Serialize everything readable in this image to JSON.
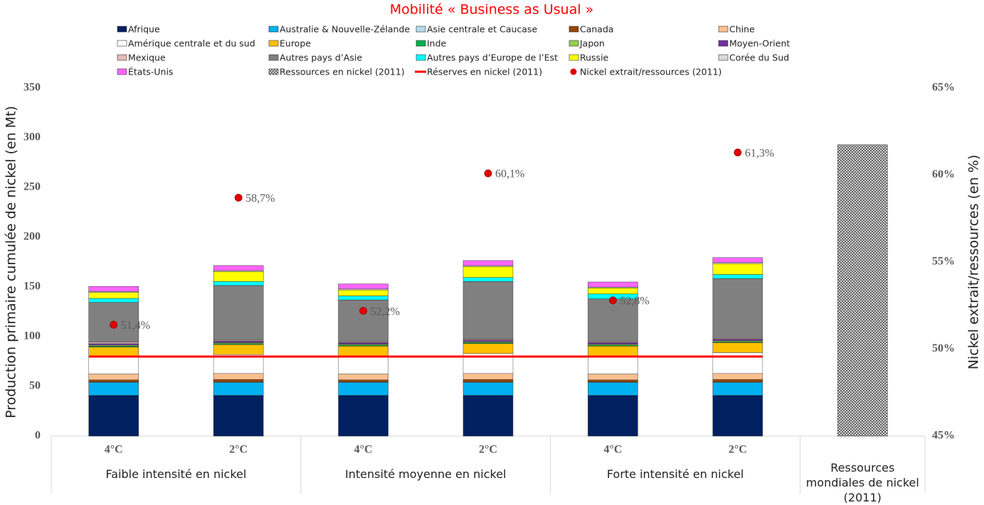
{
  "chart_data": {
    "type": "bar",
    "stacked": true,
    "title": "Mobilité « Business as Usual »",
    "ylabel": "Production primaire cumulée de nickel (en Mt)",
    "y2label": "Nickel extrait/ressources (en %)",
    "groups": [
      {
        "label": "Faible intensité en nickel",
        "categories": [
          "4°C",
          "2°C"
        ]
      },
      {
        "label": "Intensité moyenne en nickel",
        "categories": [
          "4°C",
          "2°C"
        ]
      },
      {
        "label": "Forte intensité en nickel",
        "categories": [
          "4°C",
          "2°C"
        ]
      },
      {
        "label": "Ressources mondiales de nickel (2011)",
        "categories": [
          null
        ]
      }
    ],
    "ylim": [
      0,
      350
    ],
    "yticks": [
      0,
      50,
      100,
      150,
      200,
      250,
      300,
      350
    ],
    "y2lim": [
      45,
      65
    ],
    "y2ticks": [
      {
        "value": 45,
        "label": "45%"
      },
      {
        "value": 50,
        "label": "50%"
      },
      {
        "value": 55,
        "label": "55%"
      },
      {
        "value": 60,
        "label": "60%"
      },
      {
        "value": 65,
        "label": "65%"
      }
    ],
    "series": [
      {
        "name": "Afrique",
        "color": "#002060",
        "values": [
          41,
          41,
          41,
          41,
          41,
          41,
          null
        ]
      },
      {
        "name": "Australie & Nouvelle-Zélande",
        "color": "#00b0f0",
        "values": [
          13,
          13,
          13,
          13,
          13,
          13,
          null
        ]
      },
      {
        "name": "Asie centrale et Caucase",
        "color": "#b4dce9",
        "values": [
          0.5,
          0.5,
          0.5,
          0.5,
          0.5,
          0.5,
          null
        ]
      },
      {
        "name": "Canada",
        "color": "#974706",
        "values": [
          2,
          2.5,
          2,
          2.5,
          2,
          2.5,
          null
        ]
      },
      {
        "name": "Chine",
        "color": "#fac090",
        "values": [
          6,
          6,
          6,
          6,
          6,
          6,
          null
        ]
      },
      {
        "name": "Amérique centrale et du sud",
        "color": "#ffffff",
        "values": [
          17,
          19,
          18,
          20,
          18,
          21,
          null
        ]
      },
      {
        "name": "Europe",
        "color": "#ffc000",
        "values": [
          10,
          10,
          10,
          10,
          10,
          10,
          null
        ]
      },
      {
        "name": "Inde",
        "color": "#00b050",
        "values": [
          1,
          1,
          1,
          1,
          1,
          1,
          null
        ]
      },
      {
        "name": "Japon",
        "color": "#92d050",
        "values": [
          1,
          1,
          1,
          1,
          1,
          1,
          null
        ]
      },
      {
        "name": "Moyen-Orient",
        "color": "#7030a0",
        "values": [
          1.5,
          1.5,
          1.5,
          1.5,
          1.5,
          1.5,
          null
        ]
      },
      {
        "name": "Mexique",
        "color": "#e6b9b8",
        "values": [
          1.5,
          1,
          1,
          1,
          1,
          1,
          null
        ]
      },
      {
        "name": "Autres pays d’Asie",
        "color": "#808080",
        "values": [
          40,
          55,
          42,
          58,
          43,
          60,
          null
        ]
      },
      {
        "name": "Autres pays d’Europe de l’Est",
        "color": "#00ffff",
        "values": [
          4,
          4,
          4,
          4,
          5,
          4,
          null
        ]
      },
      {
        "name": "Russie",
        "color": "#ffff00",
        "values": [
          6,
          10,
          6,
          11,
          6,
          11,
          null
        ]
      },
      {
        "name": "Corée du Sud",
        "color": "#d9d9d9",
        "values": [
          1,
          1,
          1,
          1,
          1,
          1,
          null
        ]
      },
      {
        "name": "États-Unis",
        "color": "#ff66ff",
        "values": [
          5,
          5,
          5,
          5,
          5,
          5,
          null
        ]
      },
      {
        "name": "Ressources  en nickel (2011)",
        "color": "#808080",
        "pattern": "crosshatch",
        "values": [
          null,
          null,
          null,
          null,
          null,
          null,
          293
        ]
      },
      {
        "name": "Réserves  en nickel (2011)",
        "type": "line",
        "color": "#ff0000",
        "values": [
          80,
          80,
          80,
          80,
          80,
          80,
          null
        ]
      },
      {
        "name": "Nickel extrait/ressources  (2011)",
        "type": "scatter",
        "axis": "y2",
        "color": "#e00000",
        "values": [
          51.4,
          58.7,
          52.2,
          60.1,
          52.8,
          61.3,
          null
        ],
        "value_labels": [
          "51,4%",
          "58,7%",
          "52,2%",
          "60,1%",
          "52,8%",
          "61,3%",
          null
        ]
      }
    ]
  }
}
